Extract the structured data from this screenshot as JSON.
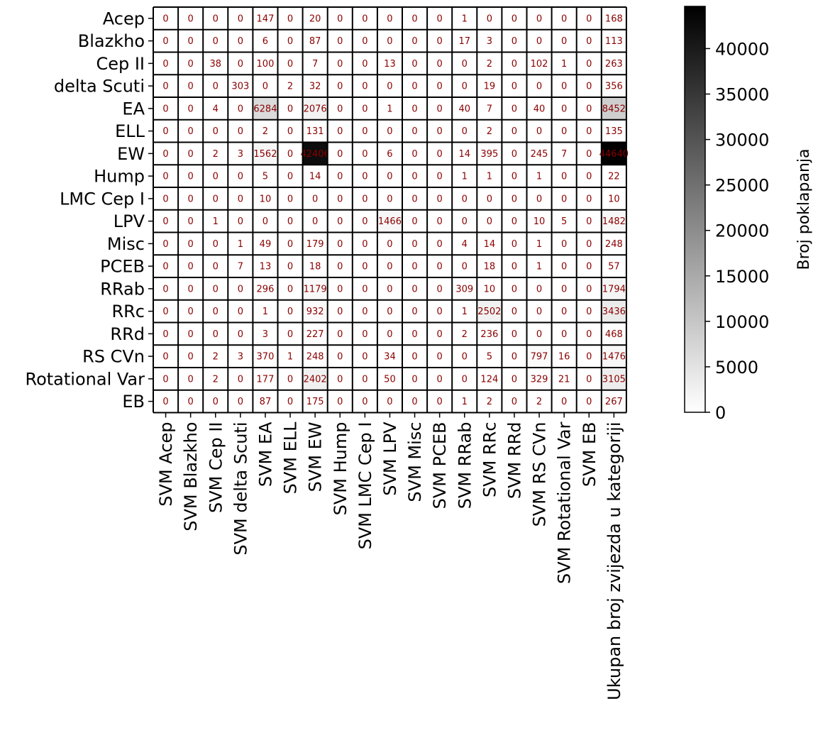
{
  "chart_data": {
    "type": "heatmap",
    "rows": [
      "Acep",
      "Blazkho",
      "Cep II",
      "delta Scuti",
      "EA",
      "ELL",
      "EW",
      "Hump",
      "LMC Cep I",
      "LPV",
      "Misc",
      "PCEB",
      "RRab",
      "RRc",
      "RRd",
      "RS CVn",
      "Rotational Var",
      "EB"
    ],
    "columns": [
      "SVM Acep",
      "SVM Blazkho",
      "SVM Cep II",
      "SVM delta Scuti",
      "SVM EA",
      "SVM ELL",
      "SVM EW",
      "SVM Hump",
      "SVM LMC Cep I",
      "SVM LPV",
      "SVM Misc",
      "SVM PCEB",
      "SVM RRab",
      "SVM RRc",
      "SVM RRd",
      "SVM RS CVn",
      "SVM Rotational Var",
      "SVM EB",
      "Ukupan broj zvijezda u kategoriji"
    ],
    "values": [
      [
        0,
        0,
        0,
        0,
        147,
        0,
        20,
        0,
        0,
        0,
        0,
        0,
        1,
        0,
        0,
        0,
        0,
        0,
        168
      ],
      [
        0,
        0,
        0,
        0,
        6,
        0,
        87,
        0,
        0,
        0,
        0,
        0,
        17,
        3,
        0,
        0,
        0,
        0,
        113
      ],
      [
        0,
        0,
        38,
        0,
        100,
        0,
        7,
        0,
        0,
        13,
        0,
        0,
        0,
        2,
        0,
        102,
        1,
        0,
        263
      ],
      [
        0,
        0,
        0,
        303,
        0,
        2,
        32,
        0,
        0,
        0,
        0,
        0,
        0,
        19,
        0,
        0,
        0,
        0,
        356
      ],
      [
        0,
        0,
        4,
        0,
        6284,
        0,
        2076,
        0,
        0,
        1,
        0,
        0,
        40,
        7,
        0,
        40,
        0,
        0,
        8452
      ],
      [
        0,
        0,
        0,
        0,
        2,
        0,
        131,
        0,
        0,
        0,
        0,
        0,
        0,
        2,
        0,
        0,
        0,
        0,
        135
      ],
      [
        0,
        0,
        2,
        3,
        1562,
        0,
        42406,
        0,
        0,
        6,
        0,
        0,
        14,
        395,
        0,
        245,
        7,
        0,
        44640
      ],
      [
        0,
        0,
        0,
        0,
        5,
        0,
        14,
        0,
        0,
        0,
        0,
        0,
        1,
        1,
        0,
        1,
        0,
        0,
        22
      ],
      [
        0,
        0,
        0,
        0,
        10,
        0,
        0,
        0,
        0,
        0,
        0,
        0,
        0,
        0,
        0,
        0,
        0,
        0,
        10
      ],
      [
        0,
        0,
        1,
        0,
        0,
        0,
        0,
        0,
        0,
        1466,
        0,
        0,
        0,
        0,
        0,
        10,
        5,
        0,
        1482
      ],
      [
        0,
        0,
        0,
        1,
        49,
        0,
        179,
        0,
        0,
        0,
        0,
        0,
        4,
        14,
        0,
        1,
        0,
        0,
        248
      ],
      [
        0,
        0,
        0,
        7,
        13,
        0,
        18,
        0,
        0,
        0,
        0,
        0,
        0,
        18,
        0,
        1,
        0,
        0,
        57
      ],
      [
        0,
        0,
        0,
        0,
        296,
        0,
        1179,
        0,
        0,
        0,
        0,
        0,
        309,
        10,
        0,
        0,
        0,
        0,
        1794
      ],
      [
        0,
        0,
        0,
        0,
        1,
        0,
        932,
        0,
        0,
        0,
        0,
        0,
        1,
        2502,
        0,
        0,
        0,
        0,
        3436
      ],
      [
        0,
        0,
        0,
        0,
        3,
        0,
        227,
        0,
        0,
        0,
        0,
        0,
        2,
        236,
        0,
        0,
        0,
        0,
        468
      ],
      [
        0,
        0,
        2,
        3,
        370,
        1,
        248,
        0,
        0,
        34,
        0,
        0,
        0,
        5,
        0,
        797,
        16,
        0,
        1476
      ],
      [
        0,
        0,
        2,
        0,
        177,
        0,
        2402,
        0,
        0,
        50,
        0,
        0,
        0,
        124,
        0,
        329,
        21,
        0,
        3105
      ],
      [
        0,
        0,
        0,
        0,
        87,
        0,
        175,
        0,
        0,
        0,
        0,
        0,
        1,
        2,
        0,
        2,
        0,
        0,
        267
      ]
    ],
    "colormap": "white-to-black",
    "vmin": 0,
    "vmax": 44640,
    "colorbar": {
      "label": "Broj poklapanja",
      "ticks": [
        0,
        5000,
        10000,
        15000,
        20000,
        25000,
        30000,
        35000,
        40000
      ]
    },
    "value_color": "#8b0000",
    "grid": true,
    "colorbar_placement": "right"
  }
}
